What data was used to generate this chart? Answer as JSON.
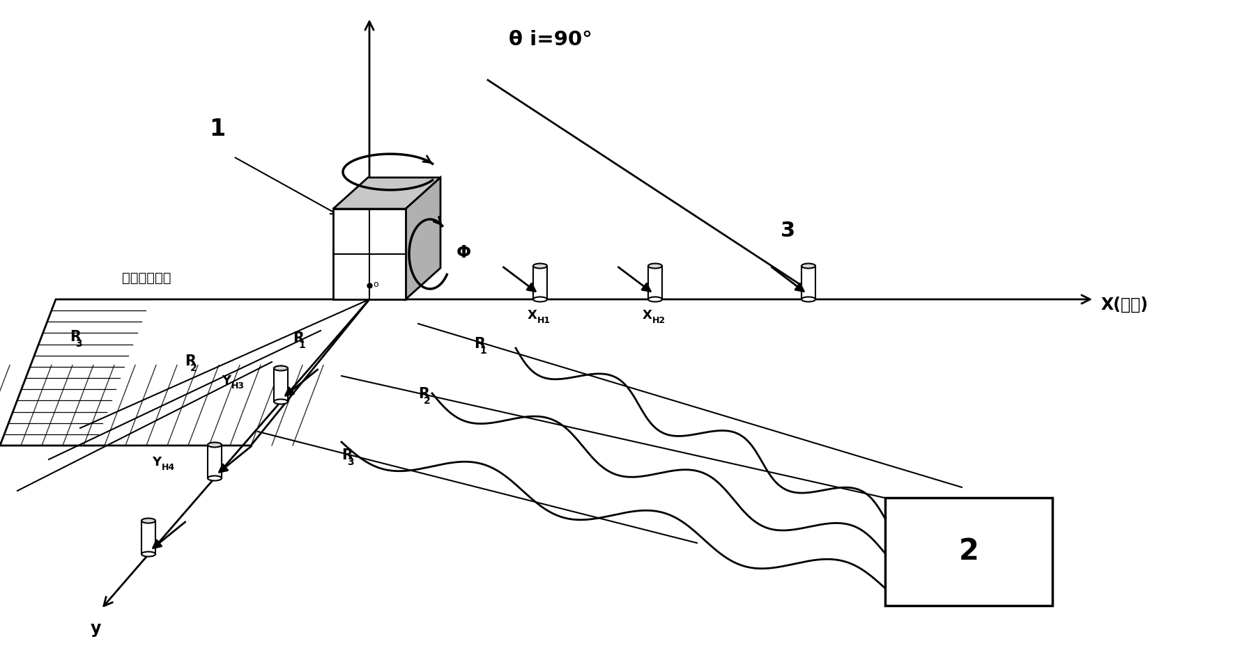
{
  "bg_color": "#ffffff",
  "line_color": "#000000",
  "fig_width": 17.95,
  "fig_height": 9.51,
  "labels": {
    "num1": "1",
    "theta": "θ i=90°",
    "phi": "Φ",
    "plane_label": "过中心赤道面",
    "x_axis": "X(磁东)",
    "y_axis": "y",
    "box_num": "2",
    "num3": "3",
    "xh1": "X",
    "xh1_sub": "H1",
    "xh2": "X",
    "xh2_sub": "H2",
    "yh3": "Y",
    "yh3_sub": "H3",
    "yh4": "Y",
    "yh4_sub": "H4",
    "r1a": "R",
    "r1a_sub": "1",
    "r2a": "R",
    "r2a_sub": "2",
    "r3a": "R",
    "r3a_sub": "3",
    "r1b": "R",
    "r1b_sub": "1",
    "r2b": "R",
    "r2b_sub": "2",
    "r3b": "R",
    "r3b_sub": "3"
  }
}
